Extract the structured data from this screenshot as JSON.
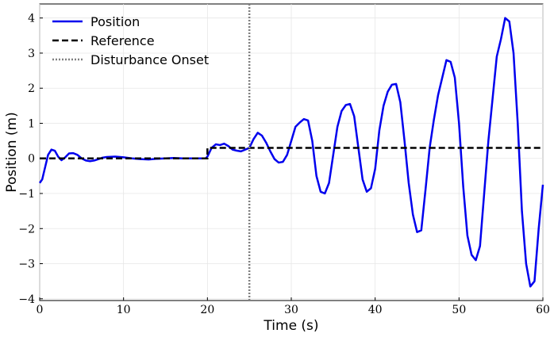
{
  "chart_data": {
    "type": "line",
    "title": "",
    "xlabel": "Time (s)",
    "ylabel": "Position (m)",
    "xlim": [
      0,
      60
    ],
    "ylim": [
      -4.05,
      4.4
    ],
    "grid": true,
    "xticks": [
      0,
      10,
      20,
      30,
      40,
      50,
      60
    ],
    "yticks": [
      -4,
      -3,
      -2,
      -1,
      0,
      1,
      2,
      3,
      4
    ],
    "legend": {
      "placement": "top-left",
      "entries": [
        {
          "label": "Position",
          "color": "#0000ee",
          "style": "solid"
        },
        {
          "label": "Reference",
          "color": "#000000",
          "style": "dashed"
        },
        {
          "label": "Disturbance Onset",
          "color": "#808080",
          "style": "dotted"
        }
      ]
    },
    "series": [
      {
        "name": "Position",
        "color": "#0000ee",
        "x": [
          0,
          0.3,
          0.6,
          1.0,
          1.4,
          1.8,
          2.2,
          2.6,
          3.0,
          3.5,
          4.0,
          4.5,
          5.0,
          5.5,
          6.0,
          6.5,
          7.0,
          7.5,
          8.0,
          9.0,
          10.0,
          11.0,
          12.0,
          13.0,
          14.0,
          15.0,
          16.0,
          17.0,
          18.0,
          19.0,
          19.8,
          20.0,
          20.5,
          21.0,
          21.5,
          22.0,
          22.5,
          23.0,
          23.5,
          24.0,
          24.5,
          25.0,
          25.5,
          26.0,
          26.5,
          27.0,
          27.5,
          28.0,
          28.5,
          29.0,
          29.5,
          30.0,
          30.5,
          31.0,
          31.5,
          32.0,
          32.5,
          33.0,
          33.5,
          34.0,
          34.5,
          35.0,
          35.5,
          36.0,
          36.5,
          37.0,
          37.5,
          38.0,
          38.5,
          39.0,
          39.5,
          40.0,
          40.5,
          41.0,
          41.5,
          42.0,
          42.5,
          43.0,
          43.5,
          44.0,
          44.5,
          45.0,
          45.5,
          46.0,
          46.5,
          47.0,
          47.5,
          48.0,
          48.5,
          49.0,
          49.5,
          50.0,
          50.5,
          51.0,
          51.5,
          52.0,
          52.5,
          53.0,
          53.5,
          54.0,
          54.5,
          55.0,
          55.5,
          56.0,
          56.5,
          57.0,
          57.5,
          58.0,
          58.5,
          59.0,
          59.5,
          60.0
        ],
        "y": [
          -0.7,
          -0.6,
          -0.3,
          0.1,
          0.25,
          0.22,
          0.05,
          -0.05,
          0.02,
          0.14,
          0.15,
          0.1,
          0.0,
          -0.06,
          -0.08,
          -0.06,
          -0.02,
          0.02,
          0.04,
          0.05,
          0.03,
          0.0,
          -0.02,
          -0.03,
          -0.01,
          0.0,
          0.01,
          0.0,
          0.0,
          0.0,
          0.0,
          0.05,
          0.3,
          0.4,
          0.38,
          0.42,
          0.35,
          0.25,
          0.22,
          0.2,
          0.25,
          0.3,
          0.55,
          0.73,
          0.65,
          0.45,
          0.2,
          -0.02,
          -0.12,
          -0.1,
          0.1,
          0.5,
          0.9,
          1.02,
          1.12,
          1.08,
          0.5,
          -0.5,
          -0.95,
          -1.0,
          -0.7,
          0.1,
          0.9,
          1.35,
          1.52,
          1.55,
          1.2,
          0.3,
          -0.6,
          -0.95,
          -0.85,
          -0.3,
          0.8,
          1.5,
          1.9,
          2.1,
          2.12,
          1.6,
          0.5,
          -0.7,
          -1.6,
          -2.1,
          -2.05,
          -0.9,
          0.3,
          1.1,
          1.8,
          2.3,
          2.8,
          2.75,
          2.3,
          1.0,
          -0.8,
          -2.2,
          -2.75,
          -2.9,
          -2.5,
          -1.0,
          0.5,
          1.7,
          2.9,
          3.4,
          4.0,
          3.9,
          3.0,
          1.0,
          -1.5,
          -3.0,
          -3.65,
          -3.5,
          -2.0,
          -0.75
        ]
      },
      {
        "name": "Reference",
        "color": "#000000",
        "x": [
          0,
          20,
          20,
          60
        ],
        "y": [
          0,
          0,
          0.3,
          0.3
        ]
      }
    ],
    "vlines": [
      {
        "name": "Disturbance Onset",
        "x": 25,
        "color": "#808080"
      }
    ]
  }
}
